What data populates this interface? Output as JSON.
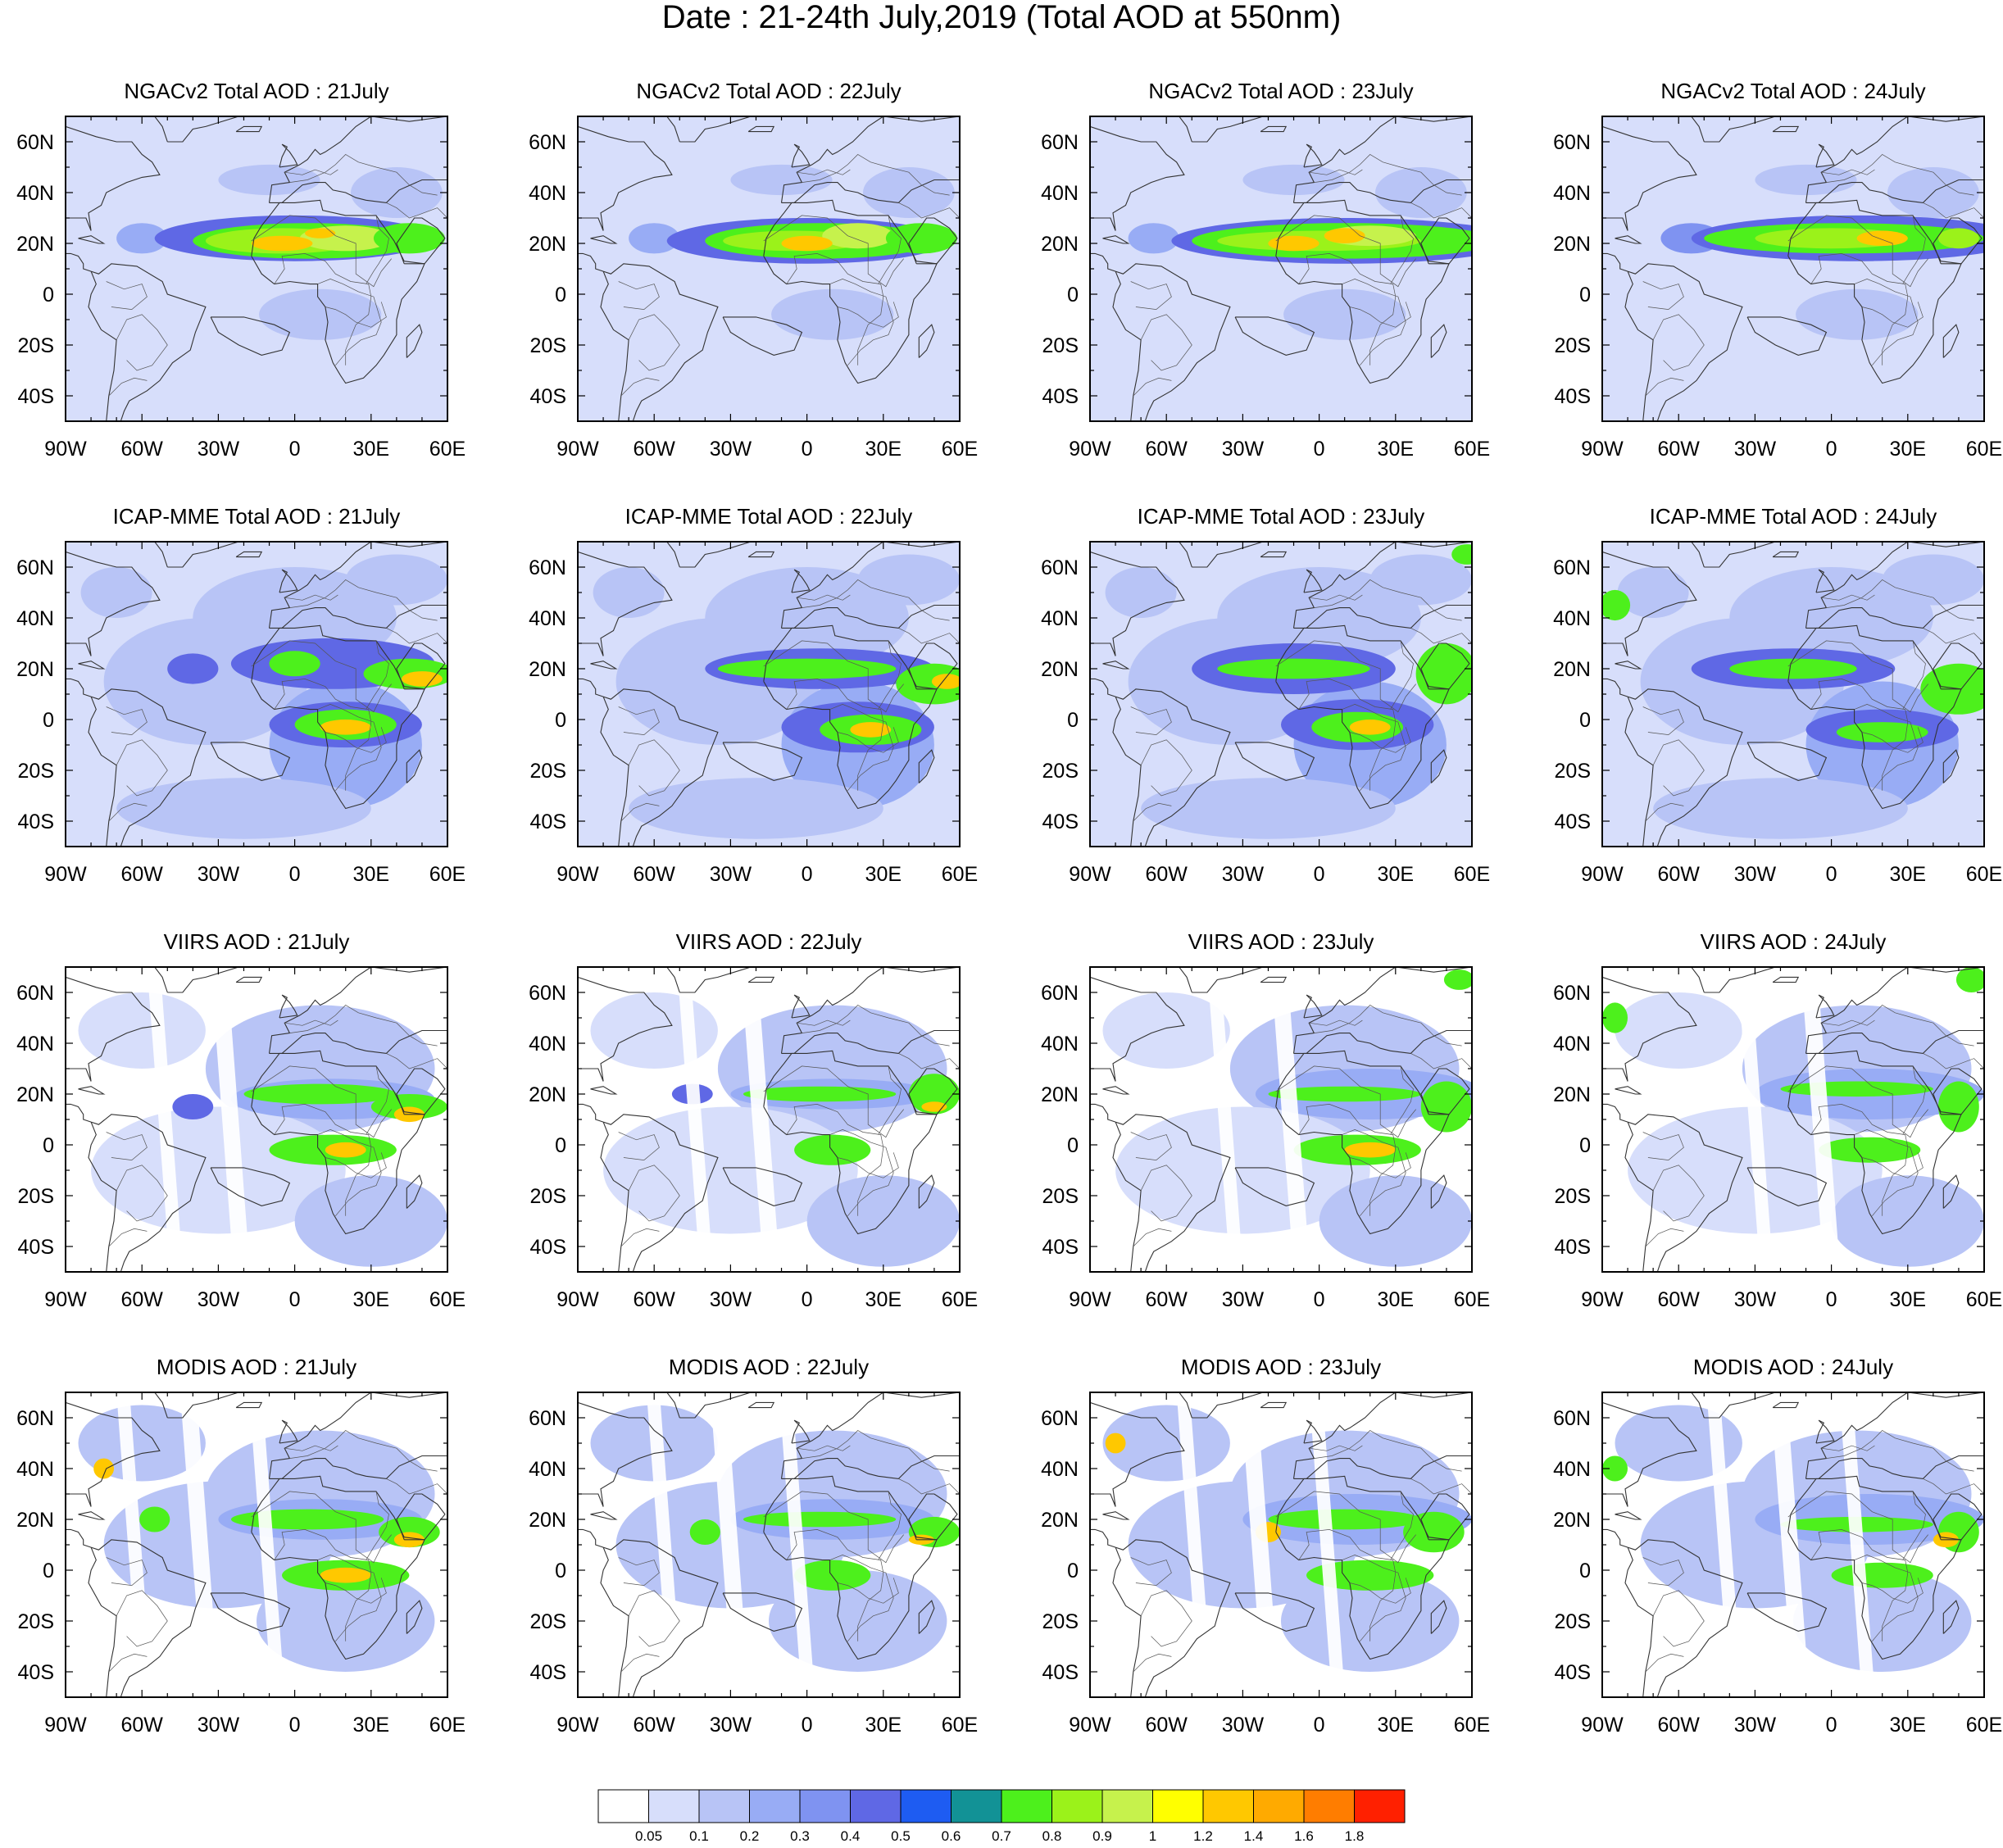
{
  "title": "Date : 21-24th July,2019 (Total AOD at 550nm)",
  "rows": [
    {
      "model": "NGACv2",
      "titles": [
        "NGACv2 Total AOD : 21July",
        "NGACv2 Total AOD : 22July",
        "NGACv2 Total AOD : 23July",
        "NGACv2 Total AOD : 24July"
      ]
    },
    {
      "model": "ICAP-MME",
      "titles": [
        "ICAP-MME Total AOD : 21July",
        "ICAP-MME Total AOD : 22July",
        "ICAP-MME Total AOD : 23July",
        "ICAP-MME Total AOD : 24July"
      ]
    },
    {
      "model": "VIIRS",
      "titles": [
        "VIIRS AOD : 21July",
        "VIIRS AOD : 22July",
        "VIIRS AOD : 23July",
        "VIIRS AOD : 24July"
      ]
    },
    {
      "model": "MODIS",
      "titles": [
        "MODIS AOD : 21July",
        "MODIS AOD : 22July",
        "MODIS AOD : 23July",
        "MODIS AOD : 24July"
      ]
    }
  ],
  "map": {
    "lon_range": [
      -90,
      60
    ],
    "lat_range": [
      -50,
      70
    ],
    "lon_ticks": [
      -90,
      -60,
      -30,
      0,
      30,
      60
    ],
    "lon_labels": [
      "90W",
      "60W",
      "30W",
      "0",
      "30E",
      "60E"
    ],
    "lat_ticks": [
      60,
      40,
      20,
      0,
      -20,
      -40
    ],
    "lat_labels": [
      "60N",
      "40N",
      "20N",
      "0",
      "20S",
      "40S"
    ]
  },
  "colorbar": {
    "colors": [
      "#ffffff",
      "#d7defb",
      "#b8c4f6",
      "#98acf5",
      "#7f93f1",
      "#5f68e5",
      "#1e5cf2",
      "#129296",
      "#4df01c",
      "#9bf21a",
      "#c6f24c",
      "#ffff00",
      "#ffc800",
      "#ffaa00",
      "#ff7d00",
      "#ff2000"
    ],
    "labels": [
      "0.05",
      "0.1",
      "0.2",
      "0.3",
      "0.4",
      "0.5",
      "0.6",
      "0.7",
      "0.8",
      "0.9",
      "1",
      "1.2",
      "1.4",
      "1.6",
      "1.8"
    ]
  }
}
